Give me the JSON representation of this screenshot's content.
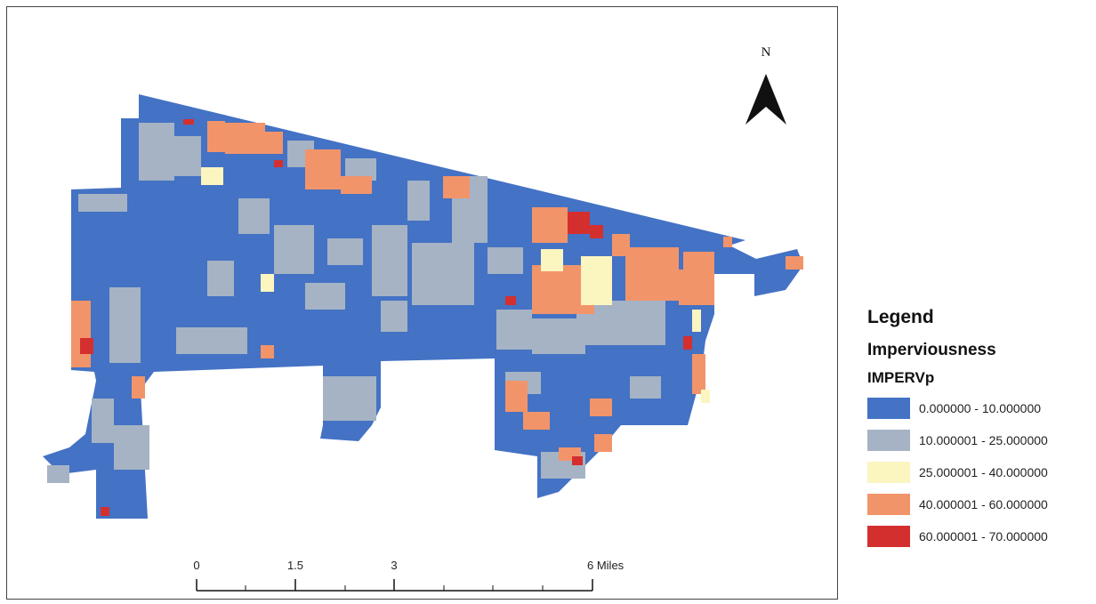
{
  "map": {
    "north_label": "N",
    "scale": {
      "ticks": [
        "0",
        "1.5",
        "3",
        "6 Miles"
      ]
    }
  },
  "legend": {
    "title": "Legend",
    "layer": "Imperviousness",
    "field": "IMPERVp",
    "classes": [
      {
        "label": "0.000000 - 10.000000",
        "color": "#4472c4"
      },
      {
        "label": "10.000001 - 25.000000",
        "color": "#a5b3c4"
      },
      {
        "label": "25.000001 - 40.000000",
        "color": "#fbf5c0"
      },
      {
        "label": "40.000001 - 60.000000",
        "color": "#f2946a"
      },
      {
        "label": "60.000001 - 70.000000",
        "color": "#d42f2f"
      }
    ]
  }
}
